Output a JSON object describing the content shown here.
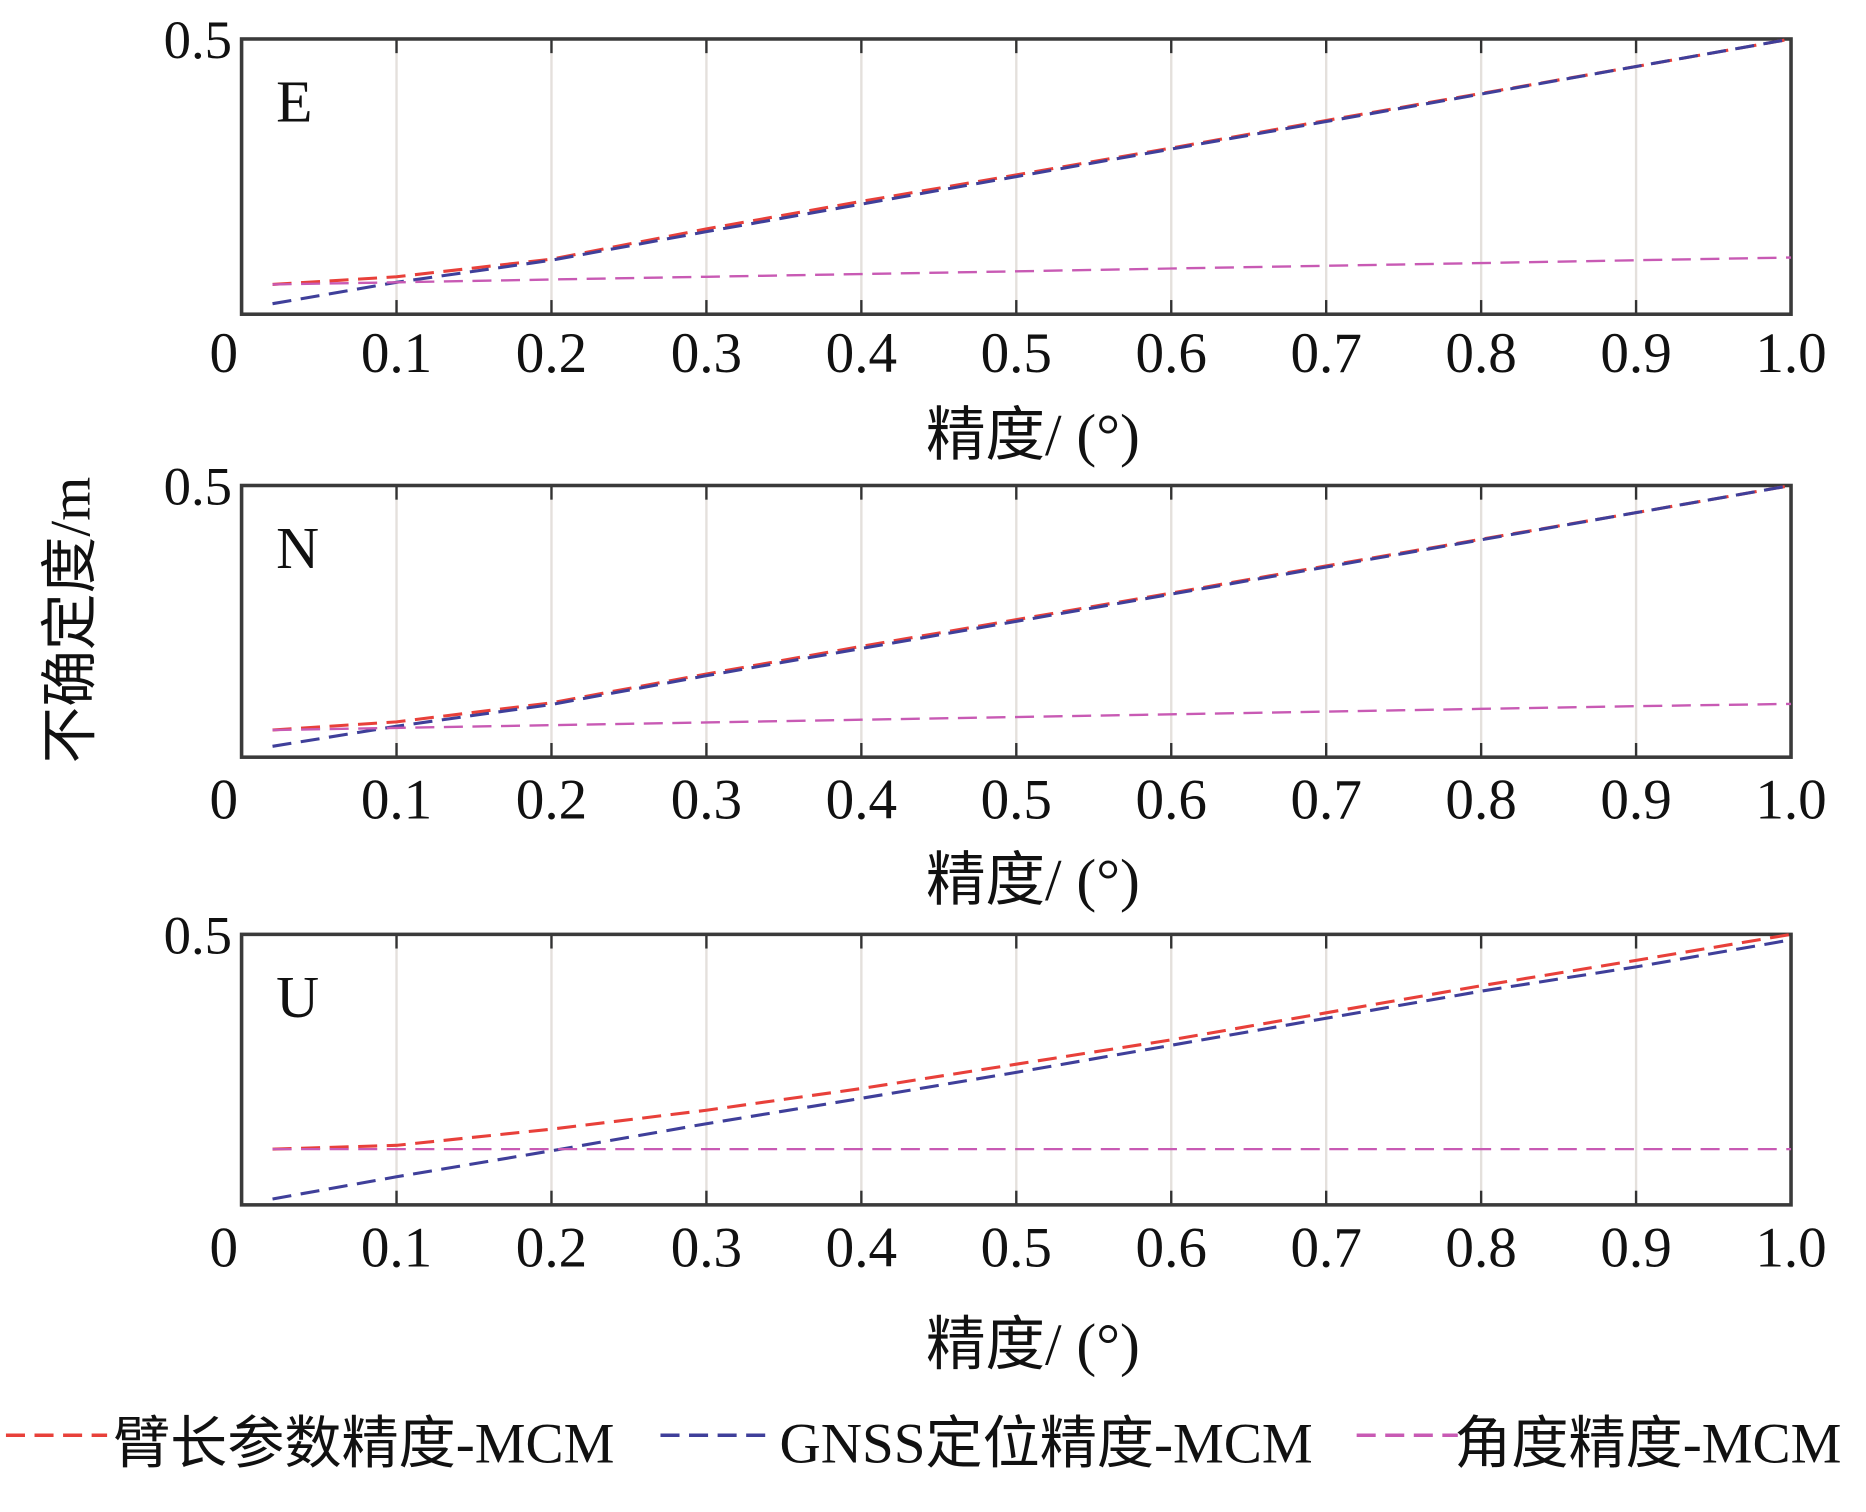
{
  "chart_data": {
    "type": "line",
    "ylabel": "不确定度/m",
    "legend_placement": "bottom",
    "legend": [
      {
        "name": "臂长参数精度-MCM",
        "color": "#e8403a"
      },
      {
        "name": "GNSS定位精度-MCM",
        "color": "#3f3f9a"
      },
      {
        "name": "角度精度-MCM",
        "color": "#c85ab4"
      }
    ],
    "x": [
      0.02,
      0.1,
      0.2,
      0.3,
      0.4,
      0.5,
      0.6,
      0.7,
      0.8,
      0.9,
      1.0
    ],
    "panels": [
      {
        "label": "E",
        "xlabel": "精度/ (°)",
        "xlim": [
          0,
          1.0
        ],
        "ylim": [
          0,
          0.5
        ],
        "xticks": [
          "0",
          "0.1",
          "0.2",
          "0.3",
          "0.4",
          "0.5",
          "0.6",
          "0.7",
          "0.8",
          "0.9",
          "1.0"
        ],
        "yticks": [
          "0.5"
        ],
        "series": [
          {
            "name": "臂长参数精度-MCM",
            "values": [
              0.054,
              0.068,
              0.1,
              0.155,
              0.205,
              0.253,
              0.302,
              0.352,
              0.401,
              0.45,
              0.5
            ]
          },
          {
            "name": "GNSS定位精度-MCM",
            "values": [
              0.019,
              0.058,
              0.098,
              0.15,
              0.2,
              0.25,
              0.3,
              0.35,
              0.4,
              0.45,
              0.5
            ]
          },
          {
            "name": "角度精度-MCM",
            "values": [
              0.054,
              0.058,
              0.063,
              0.068,
              0.073,
              0.078,
              0.083,
              0.088,
              0.093,
              0.098,
              0.103
            ]
          }
        ]
      },
      {
        "label": "N",
        "xlabel": "精度/ (°)",
        "xlim": [
          0,
          1.0
        ],
        "ylim": [
          0,
          0.5
        ],
        "xticks": [
          "0",
          "0.1",
          "0.2",
          "0.3",
          "0.4",
          "0.5",
          "0.6",
          "0.7",
          "0.8",
          "0.9",
          "1.0"
        ],
        "yticks": [
          "0.5"
        ],
        "series": [
          {
            "name": "臂长参数精度-MCM",
            "values": [
              0.05,
              0.065,
              0.1,
              0.153,
              0.204,
              0.253,
              0.302,
              0.352,
              0.401,
              0.45,
              0.5
            ]
          },
          {
            "name": "GNSS定位精度-MCM",
            "values": [
              0.02,
              0.057,
              0.097,
              0.15,
              0.2,
              0.25,
              0.3,
              0.35,
              0.4,
              0.45,
              0.5
            ]
          },
          {
            "name": "角度精度-MCM",
            "values": [
              0.05,
              0.054,
              0.059,
              0.064,
              0.069,
              0.074,
              0.079,
              0.084,
              0.089,
              0.094,
              0.098
            ]
          }
        ]
      },
      {
        "label": "U",
        "xlabel": "精度/ (°)",
        "xlim": [
          0,
          1.0
        ],
        "ylim": [
          0,
          0.5
        ],
        "xticks": [
          "0",
          "0.1",
          "0.2",
          "0.3",
          "0.4",
          "0.5",
          "0.6",
          "0.7",
          "0.8",
          "0.9",
          "1.0"
        ],
        "yticks": [
          "0.5"
        ],
        "series": [
          {
            "name": "臂长参数精度-MCM",
            "values": [
              0.103,
              0.11,
              0.14,
              0.175,
              0.215,
              0.26,
              0.305,
              0.355,
              0.405,
              0.452,
              0.5
            ]
          },
          {
            "name": "GNSS定位精度-MCM",
            "values": [
              0.011,
              0.052,
              0.1,
              0.15,
              0.197,
              0.245,
              0.295,
              0.345,
              0.395,
              0.44,
              0.49
            ]
          },
          {
            "name": "角度精度-MCM",
            "values": [
              0.103,
              0.103,
              0.103,
              0.103,
              0.103,
              0.103,
              0.103,
              0.103,
              0.103,
              0.103,
              0.103
            ]
          }
        ]
      }
    ]
  }
}
